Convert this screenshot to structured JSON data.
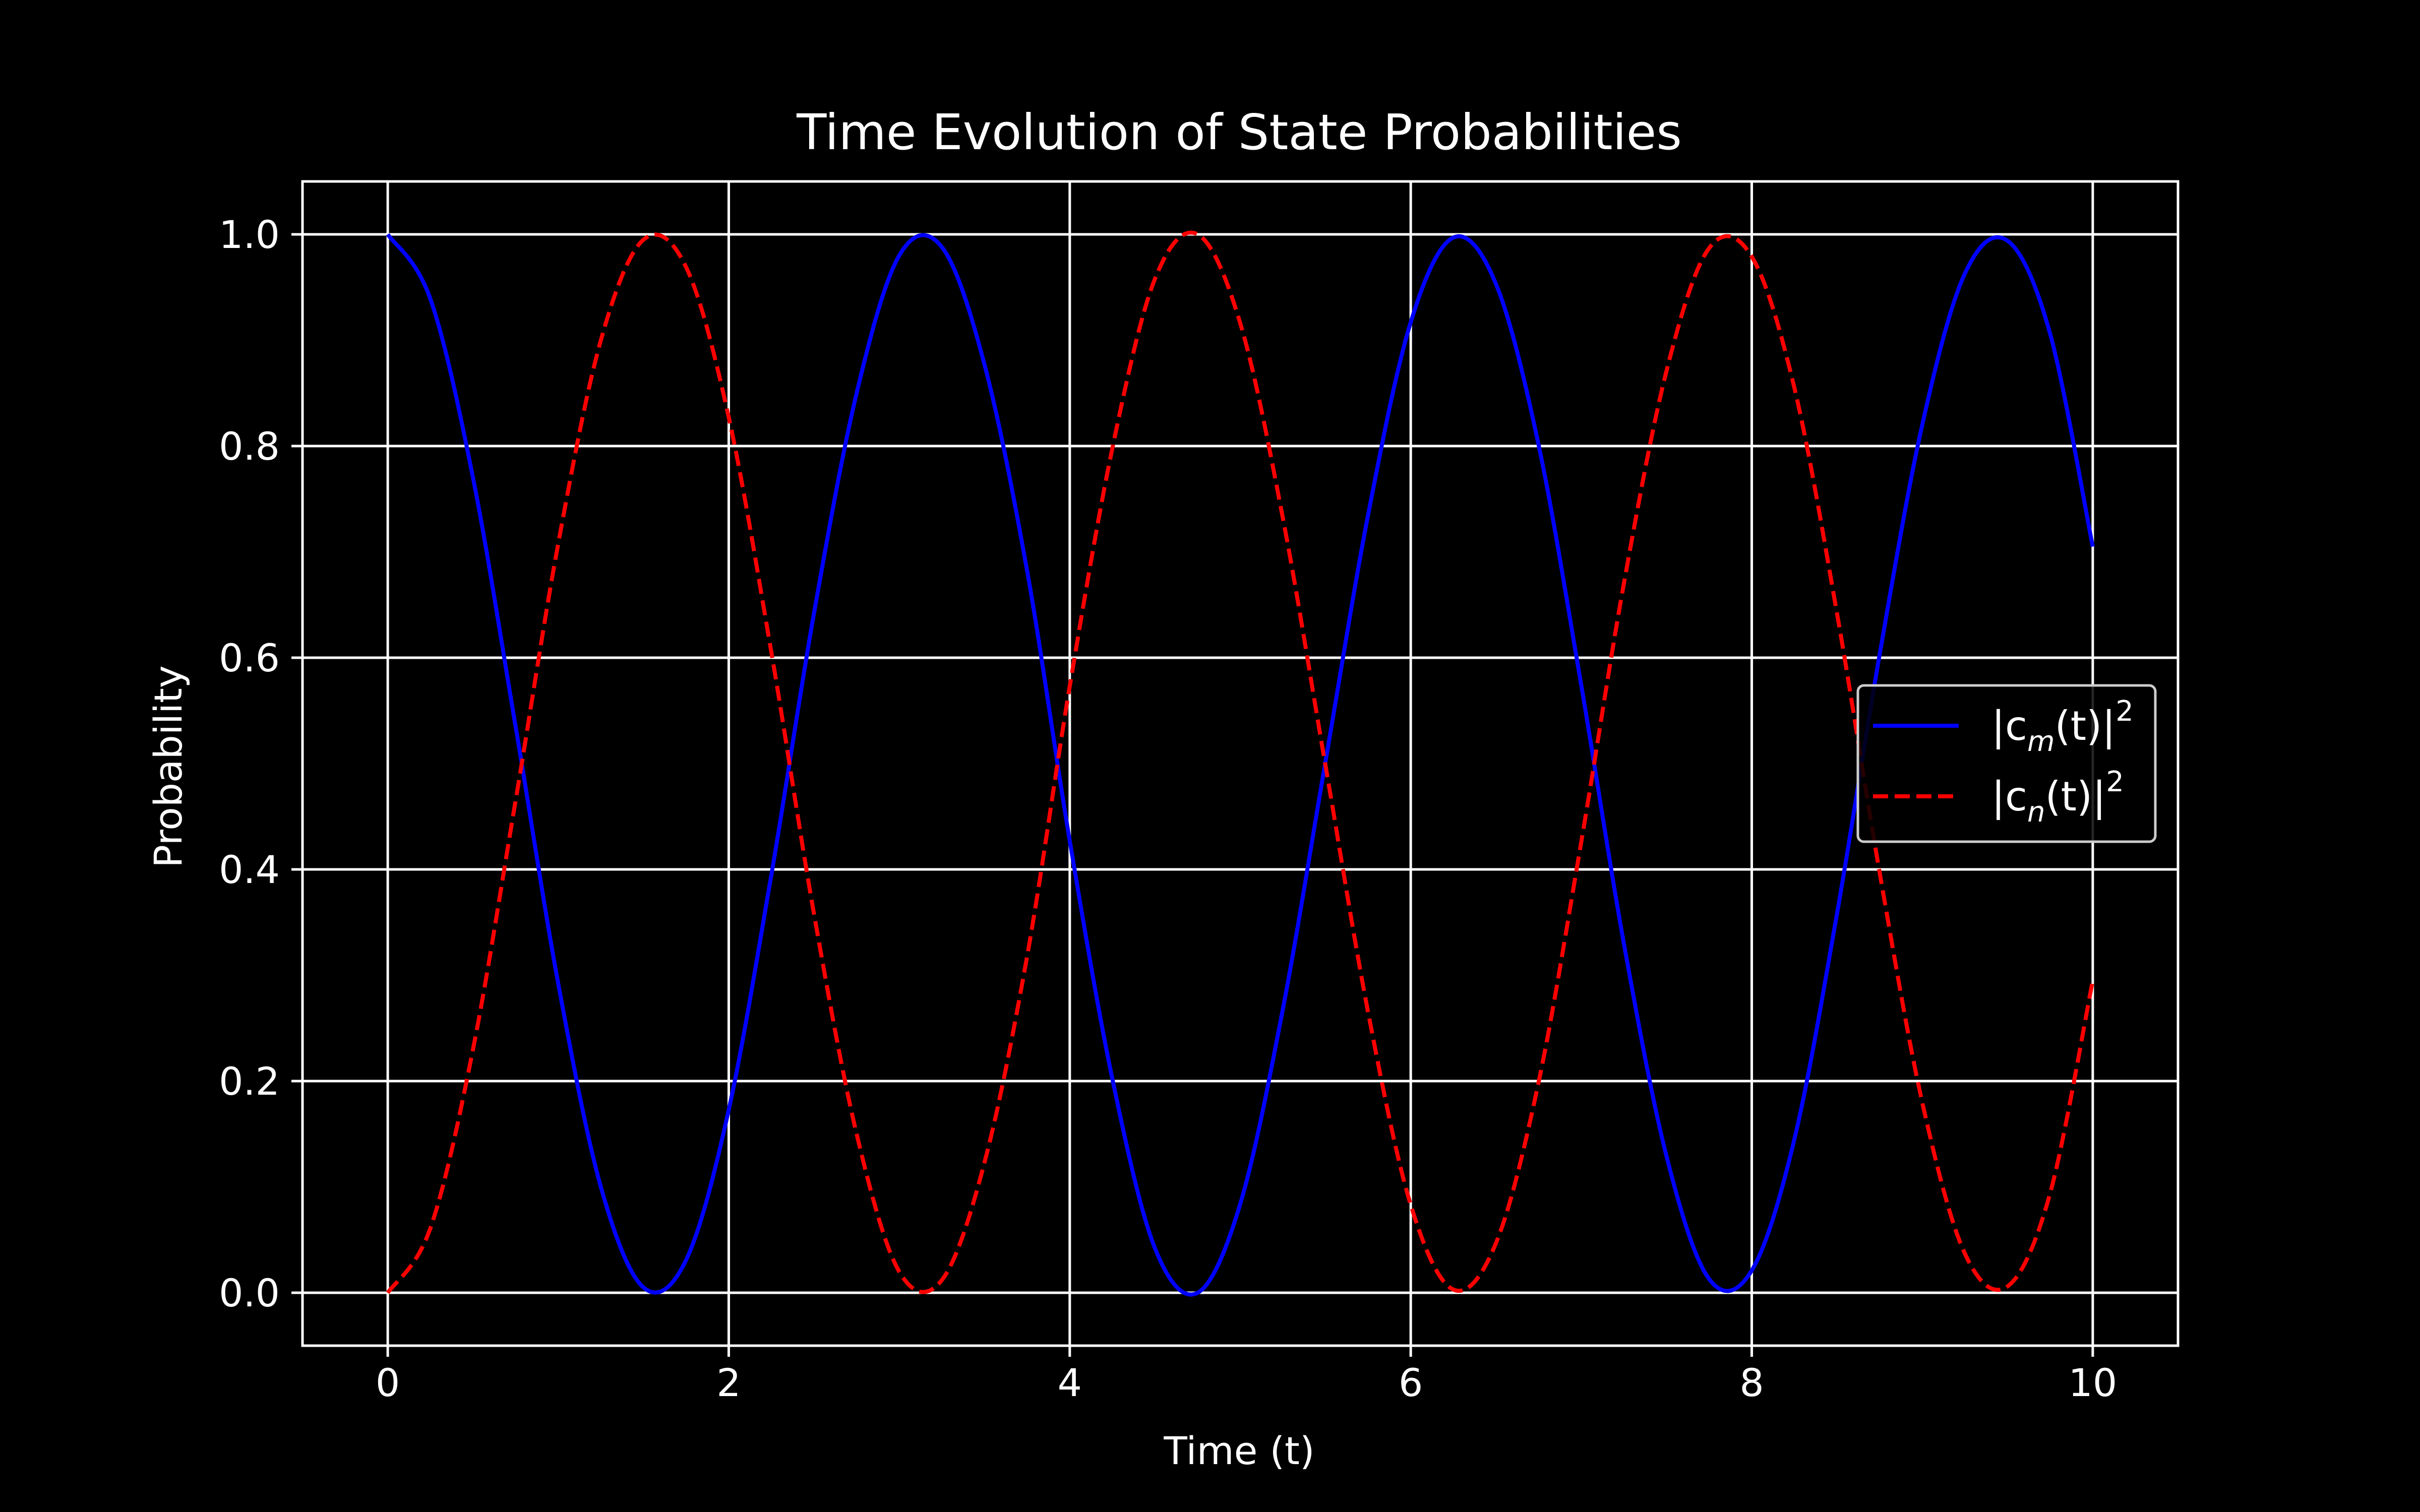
{
  "chart_data": {
    "type": "line",
    "title": "Time Evolution of State Probabilities",
    "xlabel": "Time (t)",
    "ylabel": "Probability",
    "xlim": [
      -0.5,
      10.5
    ],
    "ylim": [
      -0.05,
      1.05
    ],
    "xticks": [
      0,
      2,
      4,
      6,
      8,
      10
    ],
    "xtick_labels": [
      "0",
      "2",
      "4",
      "6",
      "8",
      "10"
    ],
    "yticks": [
      0.0,
      0.2,
      0.4,
      0.6,
      0.8,
      1.0
    ],
    "ytick_labels": [
      "0.0",
      "0.2",
      "0.4",
      "0.6",
      "0.8",
      "1.0"
    ],
    "grid": true,
    "legend_position": "center-right",
    "background_color": "#000000",
    "foreground_color": "#ffffff",
    "x": [
      0.0,
      0.25,
      0.5,
      0.75,
      1.0,
      1.25,
      1.5,
      1.75,
      2.0,
      2.25,
      2.5,
      2.75,
      3.0,
      3.25,
      3.5,
      3.75,
      4.0,
      4.25,
      4.5,
      4.75,
      5.0,
      5.25,
      5.5,
      5.75,
      6.0,
      6.25,
      6.5,
      6.75,
      7.0,
      7.25,
      7.5,
      7.75,
      8.0,
      8.25,
      8.5,
      8.75,
      9.0,
      9.25,
      9.5,
      9.75,
      10.0
    ],
    "series": [
      {
        "legend_base": "|c",
        "legend_sub": "m",
        "legend_mid": "(t)|",
        "legend_sup": "2",
        "color": "#0000ff",
        "dash": "solid",
        "values": [
          1.0,
          0.939,
          0.77,
          0.535,
          0.292,
          0.1,
          0.005,
          0.031,
          0.173,
          0.395,
          0.642,
          0.85,
          0.98,
          0.988,
          0.877,
          0.682,
          0.427,
          0.202,
          0.042,
          0.0,
          0.084,
          0.268,
          0.502,
          0.735,
          0.917,
          0.997,
          0.953,
          0.801,
          0.574,
          0.33,
          0.129,
          0.013,
          0.021,
          0.145,
          0.358,
          0.603,
          0.82,
          0.963,
          0.994,
          0.906,
          0.705
        ]
      },
      {
        "legend_base": "|c",
        "legend_sub": "n",
        "legend_mid": "(t)|",
        "legend_sup": "2",
        "color": "#ff0000",
        "dash": "dashed",
        "values": [
          0.0,
          0.061,
          0.23,
          0.465,
          0.708,
          0.9,
          0.995,
          0.969,
          0.827,
          0.605,
          0.358,
          0.15,
          0.02,
          0.012,
          0.123,
          0.318,
          0.573,
          0.798,
          0.958,
          1.0,
          0.916,
          0.732,
          0.498,
          0.265,
          0.083,
          0.003,
          0.047,
          0.199,
          0.426,
          0.67,
          0.871,
          0.987,
          0.979,
          0.855,
          0.642,
          0.397,
          0.18,
          0.037,
          0.006,
          0.094,
          0.295
        ]
      }
    ]
  }
}
